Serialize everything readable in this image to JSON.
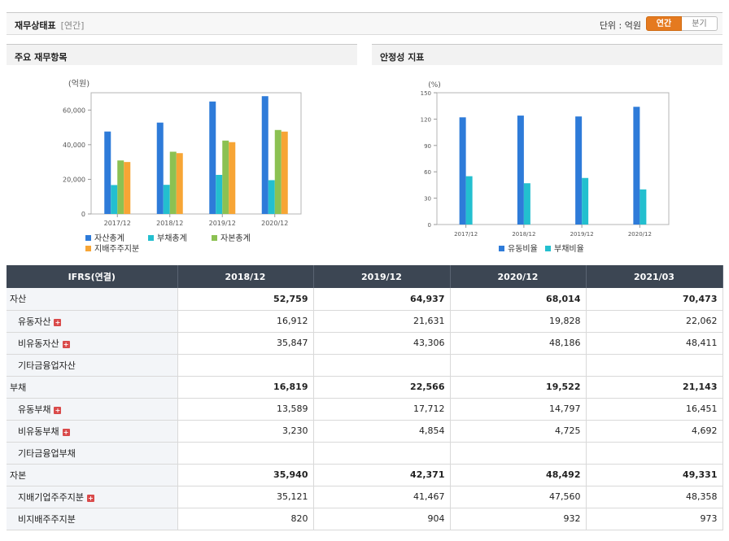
{
  "header": {
    "title": "재무상태표",
    "subtitle": "[연간]",
    "unit_label": "단위 : 억원",
    "toggle_annual": "연간",
    "toggle_quarter": "분기"
  },
  "panels": {
    "left_title": "주요 재무항목",
    "right_title": "안정성 지표"
  },
  "chart_data": [
    {
      "type": "bar",
      "ylabel": "(억원)",
      "ylim": [
        0,
        70000
      ],
      "yticks": [
        0,
        20000,
        40000,
        60000
      ],
      "ytick_labels": [
        "0",
        "20,000",
        "40,000",
        "60,000"
      ],
      "categories": [
        "2017/12",
        "2018/12",
        "2019/12",
        "2020/12"
      ],
      "series": [
        {
          "name": "자산총계",
          "color": "#2e7bd9",
          "values": [
            47600,
            52759,
            64937,
            68014
          ]
        },
        {
          "name": "부채총계",
          "color": "#23bfcf",
          "values": [
            16700,
            16819,
            22566,
            19522
          ]
        },
        {
          "name": "자본총계",
          "color": "#8cc152",
          "values": [
            30900,
            35940,
            42371,
            48492
          ]
        },
        {
          "name": "지배주주지분",
          "color": "#f7a535",
          "values": [
            30000,
            35121,
            41467,
            47560
          ]
        }
      ],
      "grid": false,
      "legend": "bottom"
    },
    {
      "type": "bar",
      "ylabel": "(%)",
      "ylim": [
        0,
        150
      ],
      "yticks": [
        0,
        30,
        60,
        90,
        120,
        150
      ],
      "ytick_labels": [
        "0",
        "30",
        "60",
        "90",
        "120",
        "150"
      ],
      "categories": [
        "2017/12",
        "2018/12",
        "2019/12",
        "2020/12"
      ],
      "series": [
        {
          "name": "유동비율",
          "color": "#2e7bd9",
          "values": [
            122,
            124,
            123,
            134
          ]
        },
        {
          "name": "부채비율",
          "color": "#23bfcf",
          "values": [
            55,
            47,
            53,
            40
          ]
        }
      ],
      "grid": false,
      "legend": "bottom"
    }
  ],
  "table": {
    "header": [
      "IFRS(연결)",
      "2018/12",
      "2019/12",
      "2020/12",
      "2021/03"
    ],
    "rows": [
      {
        "label": "자산",
        "level": "main",
        "plus": false,
        "values": [
          "52,759",
          "64,937",
          "68,014",
          "70,473"
        ]
      },
      {
        "label": "유동자산",
        "level": "sub",
        "plus": true,
        "values": [
          "16,912",
          "21,631",
          "19,828",
          "22,062"
        ]
      },
      {
        "label": "비유동자산",
        "level": "sub",
        "plus": true,
        "values": [
          "35,847",
          "43,306",
          "48,186",
          "48,411"
        ]
      },
      {
        "label": "기타금융업자산",
        "level": "sub",
        "plus": false,
        "values": [
          "",
          "",
          "",
          ""
        ]
      },
      {
        "label": "부채",
        "level": "main",
        "plus": false,
        "values": [
          "16,819",
          "22,566",
          "19,522",
          "21,143"
        ]
      },
      {
        "label": "유동부채",
        "level": "sub",
        "plus": true,
        "values": [
          "13,589",
          "17,712",
          "14,797",
          "16,451"
        ]
      },
      {
        "label": "비유동부채",
        "level": "sub",
        "plus": true,
        "values": [
          "3,230",
          "4,854",
          "4,725",
          "4,692"
        ]
      },
      {
        "label": "기타금융업부채",
        "level": "sub",
        "plus": false,
        "values": [
          "",
          "",
          "",
          ""
        ]
      },
      {
        "label": "자본",
        "level": "main",
        "plus": false,
        "values": [
          "35,940",
          "42,371",
          "48,492",
          "49,331"
        ]
      },
      {
        "label": "지배기업주주지분",
        "level": "sub",
        "plus": true,
        "values": [
          "35,121",
          "41,467",
          "47,560",
          "48,358"
        ]
      },
      {
        "label": "비지배주주지분",
        "level": "sub",
        "plus": false,
        "values": [
          "820",
          "904",
          "932",
          "973"
        ]
      }
    ]
  }
}
